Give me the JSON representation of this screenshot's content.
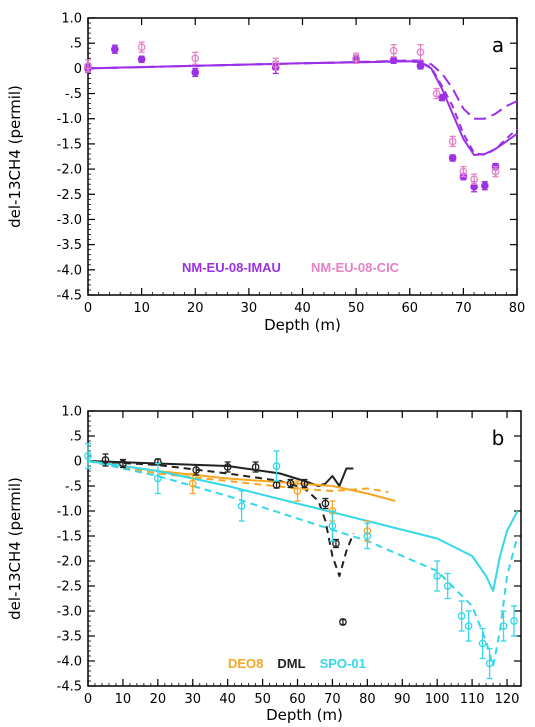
{
  "colors": {
    "imau": "#9b30e6",
    "cic": "#e680c8",
    "deo8": "#f5a623",
    "dml": "#222222",
    "spo": "#35d8e8"
  },
  "chart_data": [
    {
      "type": "line",
      "panel_label": "a",
      "title": "",
      "xlabel": "Depth (m)",
      "ylabel": "del-13CH4 (permil)",
      "xlim": [
        0,
        80
      ],
      "ylim": [
        -4.5,
        1.0
      ],
      "x_ticks": [
        0,
        10,
        20,
        30,
        40,
        50,
        60,
        70,
        80
      ],
      "y_ticks": [
        1.0,
        0.5,
        0,
        -0.5,
        -1.0,
        -1.5,
        -2.0,
        -2.5,
        -3.0,
        -3.5,
        -4.0,
        -4.5
      ],
      "y_tick_labels": [
        "1.0",
        ".5",
        "0",
        "-.5",
        "-1.0",
        "-1.5",
        "-2.0",
        "-2.5",
        "-3.0",
        "-3.5",
        "-4.0",
        "-4.5"
      ],
      "legend": [
        "NM-EU-08-IMAU",
        "NM-EU-08-CIC"
      ],
      "series": [
        {
          "name": "NM-EU-08-IMAU",
          "kind": "points",
          "color_key": "imau",
          "x": [
            0,
            5,
            10,
            20,
            35,
            50,
            57,
            62,
            66,
            68,
            70,
            72,
            74,
            76
          ],
          "y": [
            0.0,
            0.38,
            0.18,
            -0.08,
            0.02,
            0.18,
            0.16,
            0.05,
            -0.58,
            -1.78,
            -2.15,
            -2.35,
            -2.33,
            -1.95
          ],
          "err": [
            0.08,
            0.08,
            0.06,
            0.08,
            0.12,
            0.08,
            0.06,
            0.06,
            0.06,
            0.06,
            0.06,
            0.1,
            0.08,
            0.06
          ]
        },
        {
          "name": "NM-EU-08-CIC",
          "kind": "points",
          "color_key": "cic",
          "x": [
            0,
            10,
            20,
            35,
            50,
            57,
            62,
            65,
            68,
            70,
            72,
            76
          ],
          "y": [
            0.05,
            0.42,
            0.2,
            0.08,
            0.2,
            0.35,
            0.32,
            -0.5,
            -1.45,
            -2.05,
            -2.2,
            -2.05
          ],
          "err": [
            0.12,
            0.1,
            0.12,
            0.12,
            0.1,
            0.12,
            0.15,
            0.1,
            0.1,
            0.1,
            0.1,
            0.1
          ]
        },
        {
          "kind": "line",
          "style": "solid",
          "color_key": "imau",
          "x": [
            0,
            20,
            40,
            55,
            60,
            62,
            64,
            66,
            68,
            70,
            72,
            74,
            76,
            78,
            80
          ],
          "y": [
            0.0,
            0.05,
            0.1,
            0.13,
            0.14,
            0.12,
            0.0,
            -0.4,
            -0.9,
            -1.4,
            -1.72,
            -1.7,
            -1.6,
            -1.45,
            -1.3
          ]
        },
        {
          "kind": "line",
          "style": "dashed",
          "color_key": "imau",
          "x": [
            0,
            20,
            40,
            55,
            60,
            62,
            64,
            66,
            68,
            70,
            72,
            74,
            76,
            78,
            80
          ],
          "y": [
            0.0,
            0.05,
            0.1,
            0.13,
            0.14,
            0.12,
            0.02,
            -0.35,
            -0.75,
            -1.3,
            -1.68,
            -1.72,
            -1.6,
            -1.4,
            -1.2
          ]
        },
        {
          "kind": "line",
          "style": "long-dash",
          "color_key": "imau",
          "x": [
            0,
            20,
            40,
            55,
            60,
            62,
            64,
            66,
            68,
            70,
            72,
            74,
            76,
            78,
            80
          ],
          "y": [
            0.0,
            0.05,
            0.1,
            0.14,
            0.16,
            0.15,
            0.08,
            -0.1,
            -0.4,
            -0.8,
            -1.0,
            -1.0,
            -0.9,
            -0.75,
            -0.65
          ]
        }
      ]
    },
    {
      "type": "line",
      "panel_label": "b",
      "title": "",
      "xlabel": "Depth (m)",
      "ylabel": "del-13CH4 (permil)",
      "xlim": [
        0,
        124
      ],
      "ylim": [
        -4.5,
        1.0
      ],
      "x_ticks": [
        0,
        10,
        20,
        30,
        40,
        50,
        60,
        70,
        80,
        90,
        100,
        110,
        120
      ],
      "y_ticks": [
        1.0,
        0.5,
        0,
        -0.5,
        -1.0,
        -1.5,
        -2.0,
        -2.5,
        -3.0,
        -3.5,
        -4.0,
        -4.5
      ],
      "y_tick_labels": [
        "1.0",
        ".5",
        "0",
        "-.5",
        "-1.0",
        "-1.5",
        "-2.0",
        "-2.5",
        "-3.0",
        "-3.5",
        "-4.0",
        "-4.5"
      ],
      "legend": [
        "DEO8",
        "DML",
        "SPO-01"
      ],
      "series": [
        {
          "name": "DEO8",
          "kind": "points",
          "color_key": "deo8",
          "x": [
            30,
            60,
            70,
            80
          ],
          "y": [
            -0.45,
            -0.6,
            -1.0,
            -1.4
          ],
          "err": [
            0.2,
            0.2,
            0.2,
            0.2
          ]
        },
        {
          "name": "DML",
          "kind": "points",
          "color_key": "dml",
          "x": [
            5,
            10,
            20,
            31,
            40,
            48,
            54,
            58,
            62,
            68,
            71,
            73
          ],
          "y": [
            0.02,
            -0.05,
            -0.02,
            -0.18,
            -0.12,
            -0.12,
            -0.48,
            -0.45,
            -0.45,
            -0.85,
            -1.65,
            -3.22
          ],
          "err": [
            0.12,
            0.08,
            0.06,
            0.1,
            0.1,
            0.1,
            0.06,
            0.08,
            0.08,
            0.1,
            0.08,
            0.05
          ]
        },
        {
          "name": "SPO-01",
          "kind": "points",
          "color_key": "spo",
          "x": [
            0,
            20,
            44,
            54,
            70,
            80,
            100,
            103,
            107,
            109,
            113,
            115,
            119,
            122
          ],
          "y": [
            0.1,
            -0.35,
            -0.9,
            -0.1,
            -1.3,
            -1.5,
            -2.3,
            -2.5,
            -3.1,
            -3.3,
            -3.65,
            -4.05,
            -3.3,
            -3.2
          ],
          "err": [
            0.25,
            0.3,
            0.3,
            0.3,
            0.3,
            0.25,
            0.3,
            0.25,
            0.3,
            0.3,
            0.3,
            0.3,
            0.3,
            0.3
          ]
        },
        {
          "kind": "line",
          "style": "solid",
          "color_key": "dml",
          "x": [
            0,
            20,
            40,
            55,
            62,
            66,
            68,
            70,
            72,
            74,
            76
          ],
          "y": [
            0.0,
            -0.05,
            -0.1,
            -0.25,
            -0.4,
            -0.5,
            -0.45,
            -0.3,
            -0.5,
            -0.15,
            -0.15
          ]
        },
        {
          "kind": "line",
          "style": "dashed",
          "color_key": "dml",
          "x": [
            0,
            20,
            40,
            55,
            62,
            66,
            68,
            70,
            72,
            74,
            76
          ],
          "y": [
            0.0,
            -0.08,
            -0.25,
            -0.4,
            -0.55,
            -0.8,
            -1.2,
            -1.9,
            -2.3,
            -1.8,
            -1.45
          ]
        },
        {
          "kind": "line",
          "style": "solid",
          "color_key": "deo8",
          "x": [
            0,
            20,
            40,
            60,
            70,
            80,
            88
          ],
          "y": [
            0.0,
            -0.2,
            -0.35,
            -0.45,
            -0.5,
            -0.65,
            -0.8
          ]
        },
        {
          "kind": "line",
          "style": "dashed",
          "color_key": "deo8",
          "x": [
            0,
            20,
            40,
            60,
            70,
            80,
            86
          ],
          "y": [
            0.0,
            -0.25,
            -0.4,
            -0.55,
            -0.6,
            -0.55,
            -0.62
          ]
        },
        {
          "kind": "line",
          "style": "solid",
          "color_key": "spo",
          "x": [
            0,
            20,
            40,
            60,
            80,
            100,
            110,
            114,
            116,
            118,
            120,
            123
          ],
          "y": [
            0.0,
            -0.2,
            -0.5,
            -0.85,
            -1.2,
            -1.55,
            -1.9,
            -2.3,
            -2.6,
            -1.9,
            -1.4,
            -1.0
          ]
        },
        {
          "kind": "line",
          "style": "dashed",
          "color_key": "spo",
          "x": [
            0,
            20,
            40,
            60,
            80,
            100,
            110,
            114,
            116,
            118,
            120,
            123
          ],
          "y": [
            0.0,
            -0.3,
            -0.7,
            -1.15,
            -1.6,
            -2.2,
            -2.9,
            -3.6,
            -4.1,
            -3.4,
            -2.3,
            -1.5
          ]
        }
      ]
    }
  ]
}
